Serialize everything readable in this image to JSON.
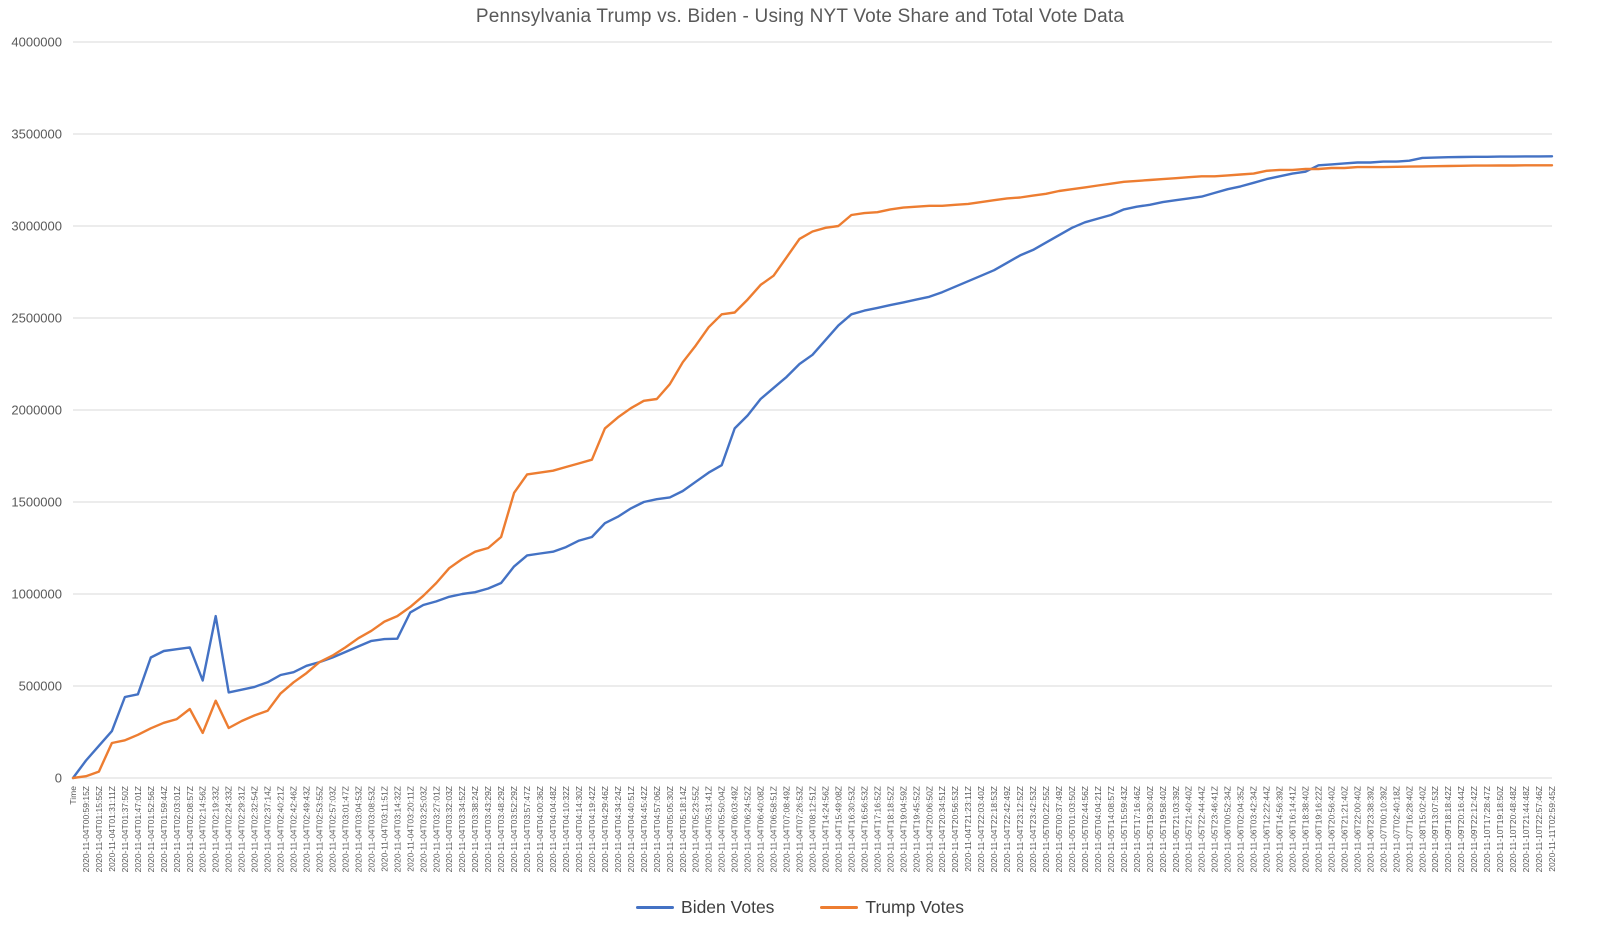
{
  "header": {
    "title": "Pennsylvania Trump vs. Biden - Using NYT Vote Share and Total Vote Data"
  },
  "legend": {
    "items": [
      {
        "label": "Biden Votes",
        "color": "#4472C4"
      },
      {
        "label": "Trump Votes",
        "color": "#ED7D31"
      }
    ]
  },
  "colors": {
    "biden_line": "#4472C4",
    "trump_line": "#ED7D31",
    "gridline": "#D9D9D9",
    "axis_line": "#D9D9D9",
    "tick_label": "#595959",
    "title_text": "#595959"
  },
  "chart_data": {
    "type": "line",
    "title": "Pennsylvania Trump vs. Biden - Using NYT Vote Share and Total Vote Data",
    "xlabel": "",
    "ylabel": "",
    "ylim": [
      0,
      4000000
    ],
    "yticks": [
      0,
      500000,
      1000000,
      1500000,
      2000000,
      2500000,
      3000000,
      3500000,
      4000000
    ],
    "grid": "horizontal-only",
    "legend_position": "bottom-center",
    "x_tick_rotation": -90,
    "categories": [
      "Time",
      "2020-11-04T00:59:15Z",
      "2020-11-04T01:15:55Z",
      "2020-11-04T01:31:11Z",
      "2020-11-04T01:37:50Z",
      "2020-11-04T01:47:01Z",
      "2020-11-04T01:52:56Z",
      "2020-11-04T01:59:44Z",
      "2020-11-04T02:03:01Z",
      "2020-11-04T02:08:57Z",
      "2020-11-04T02:14:56Z",
      "2020-11-04T02:19:33Z",
      "2020-11-04T02:24:33Z",
      "2020-11-04T02:29:31Z",
      "2020-11-04T02:32:54Z",
      "2020-11-04T02:37:14Z",
      "2020-11-04T02:40:21Z",
      "2020-11-04T02:42:46Z",
      "2020-11-04T02:49:43Z",
      "2020-11-04T02:53:55Z",
      "2020-11-04T02:57:03Z",
      "2020-11-04T03:01:47Z",
      "2020-11-04T03:04:53Z",
      "2020-11-04T03:08:53Z",
      "2020-11-04T03:11:51Z",
      "2020-11-04T03:14:32Z",
      "2020-11-04T03:20:11Z",
      "2020-11-04T03:25:03Z",
      "2020-11-04T03:27:01Z",
      "2020-11-04T03:32:03Z",
      "2020-11-04T03:34:52Z",
      "2020-11-04T03:38:24Z",
      "2020-11-04T03:43:29Z",
      "2020-11-04T03:48:29Z",
      "2020-11-04T03:52:29Z",
      "2020-11-04T03:57:47Z",
      "2020-11-04T04:00:36Z",
      "2020-11-04T04:04:48Z",
      "2020-11-04T04:10:32Z",
      "2020-11-04T04:14:30Z",
      "2020-11-04T04:19:42Z",
      "2020-11-04T04:29:46Z",
      "2020-11-04T04:34:24Z",
      "2020-11-04T04:40:51Z",
      "2020-11-04T04:45:42Z",
      "2020-11-04T04:57:06Z",
      "2020-11-04T05:05:30Z",
      "2020-11-04T05:18:14Z",
      "2020-11-04T05:23:55Z",
      "2020-11-04T05:31:41Z",
      "2020-11-04T05:50:04Z",
      "2020-11-04T06:03:49Z",
      "2020-11-04T06:24:52Z",
      "2020-11-04T06:40:08Z",
      "2020-11-04T06:58:51Z",
      "2020-11-04T07:08:49Z",
      "2020-11-04T07:26:53Z",
      "2020-11-04T08:12:51Z",
      "2020-11-04T14:24:56Z",
      "2020-11-04T15:49:08Z",
      "2020-11-04T16:30:53Z",
      "2020-11-04T16:56:53Z",
      "2020-11-04T17:16:52Z",
      "2020-11-04T18:18:52Z",
      "2020-11-04T19:04:59Z",
      "2020-11-04T19:45:52Z",
      "2020-11-04T20:06:50Z",
      "2020-11-04T20:34:51Z",
      "2020-11-04T20:56:53Z",
      "2020-11-04T21:23:11Z",
      "2020-11-04T22:03:40Z",
      "2020-11-04T22:18:53Z",
      "2020-11-04T22:42:49Z",
      "2020-11-04T23:12:52Z",
      "2020-11-04T23:42:53Z",
      "2020-11-05T00:22:55Z",
      "2020-11-05T00:37:49Z",
      "2020-11-05T01:03:50Z",
      "2020-11-05T02:44:56Z",
      "2020-11-05T04:04:21Z",
      "2020-11-05T14:08:57Z",
      "2020-11-05T15:59:43Z",
      "2020-11-05T17:16:46Z",
      "2020-11-05T19:30:40Z",
      "2020-11-05T19:58:40Z",
      "2020-11-05T21:03:39Z",
      "2020-11-05T21:40:40Z",
      "2020-11-05T22:44:44Z",
      "2020-11-05T23:46:41Z",
      "2020-11-06T00:52:34Z",
      "2020-11-06T02:04:35Z",
      "2020-11-06T03:42:34Z",
      "2020-11-06T12:22:44Z",
      "2020-11-06T14:56:39Z",
      "2020-11-06T16:14:41Z",
      "2020-11-06T18:38:40Z",
      "2020-11-06T19:16:22Z",
      "2020-11-06T20:56:40Z",
      "2020-11-06T21:21:40Z",
      "2020-11-06T22:00:40Z",
      "2020-11-06T23:38:39Z",
      "2020-11-07T00:10:39Z",
      "2020-11-07T02:40:18Z",
      "2020-11-07T16:28:40Z",
      "2020-11-08T15:02:40Z",
      "2020-11-09T13:07:53Z",
      "2020-11-09T18:18:42Z",
      "2020-11-09T20:16:44Z",
      "2020-11-09T22:12:42Z",
      "2020-11-10T17:28:47Z",
      "2020-11-10T19:18:50Z",
      "2020-11-10T20:48:48Z",
      "2020-11-10T21:44:48Z",
      "2020-11-10T22:57:46Z",
      "2020-11-11T02:59:45Z"
    ],
    "series": [
      {
        "name": "Biden Votes",
        "color": "#4472C4",
        "values": [
          0,
          95000,
          175000,
          255000,
          440000,
          455000,
          655000,
          690000,
          700000,
          710000,
          530000,
          880000,
          465000,
          480000,
          495000,
          520000,
          560000,
          575000,
          610000,
          630000,
          655000,
          685000,
          715000,
          745000,
          755000,
          757000,
          900000,
          940000,
          960000,
          985000,
          1000000,
          1010000,
          1030000,
          1060000,
          1150000,
          1210000,
          1220000,
          1230000,
          1255000,
          1290000,
          1310000,
          1385000,
          1420000,
          1465000,
          1500000,
          1515000,
          1525000,
          1560000,
          1610000,
          1660000,
          1700000,
          1900000,
          1970000,
          2060000,
          2120000,
          2180000,
          2250000,
          2300000,
          2380000,
          2460000,
          2520000,
          2540000,
          2555000,
          2570000,
          2585000,
          2600000,
          2615000,
          2640000,
          2670000,
          2700000,
          2730000,
          2760000,
          2800000,
          2840000,
          2870000,
          2910000,
          2950000,
          2990000,
          3020000,
          3040000,
          3060000,
          3090000,
          3105000,
          3115000,
          3130000,
          3140000,
          3150000,
          3160000,
          3180000,
          3200000,
          3215000,
          3235000,
          3255000,
          3270000,
          3285000,
          3295000,
          3330000,
          3335000,
          3340000,
          3345000,
          3345000,
          3350000,
          3350000,
          3355000,
          3370000,
          3372000,
          3374000,
          3375000,
          3376000,
          3376000,
          3377000,
          3377000,
          3378000,
          3378000,
          3379000
        ]
      },
      {
        "name": "Trump Votes",
        "color": "#ED7D31",
        "values": [
          0,
          10000,
          35000,
          190000,
          205000,
          235000,
          270000,
          300000,
          320000,
          375000,
          245000,
          420000,
          272000,
          310000,
          340000,
          365000,
          460000,
          520000,
          570000,
          630000,
          665000,
          710000,
          760000,
          800000,
          850000,
          880000,
          930000,
          990000,
          1060000,
          1140000,
          1190000,
          1230000,
          1250000,
          1310000,
          1550000,
          1650000,
          1660000,
          1670000,
          1690000,
          1710000,
          1730000,
          1900000,
          1960000,
          2010000,
          2050000,
          2060000,
          2140000,
          2260000,
          2350000,
          2450000,
          2520000,
          2530000,
          2600000,
          2680000,
          2730000,
          2830000,
          2930000,
          2970000,
          2990000,
          3000000,
          3060000,
          3070000,
          3075000,
          3090000,
          3100000,
          3105000,
          3110000,
          3110000,
          3115000,
          3120000,
          3130000,
          3140000,
          3150000,
          3155000,
          3165000,
          3175000,
          3190000,
          3200000,
          3210000,
          3220000,
          3230000,
          3240000,
          3245000,
          3250000,
          3255000,
          3260000,
          3265000,
          3270000,
          3270000,
          3275000,
          3280000,
          3285000,
          3300000,
          3305000,
          3305000,
          3310000,
          3310000,
          3315000,
          3315000,
          3320000,
          3320000,
          3320000,
          3322000,
          3323000,
          3324000,
          3325000,
          3326000,
          3327000,
          3328000,
          3328000,
          3329000,
          3329000,
          3330000,
          3330000,
          3330000
        ]
      }
    ]
  }
}
